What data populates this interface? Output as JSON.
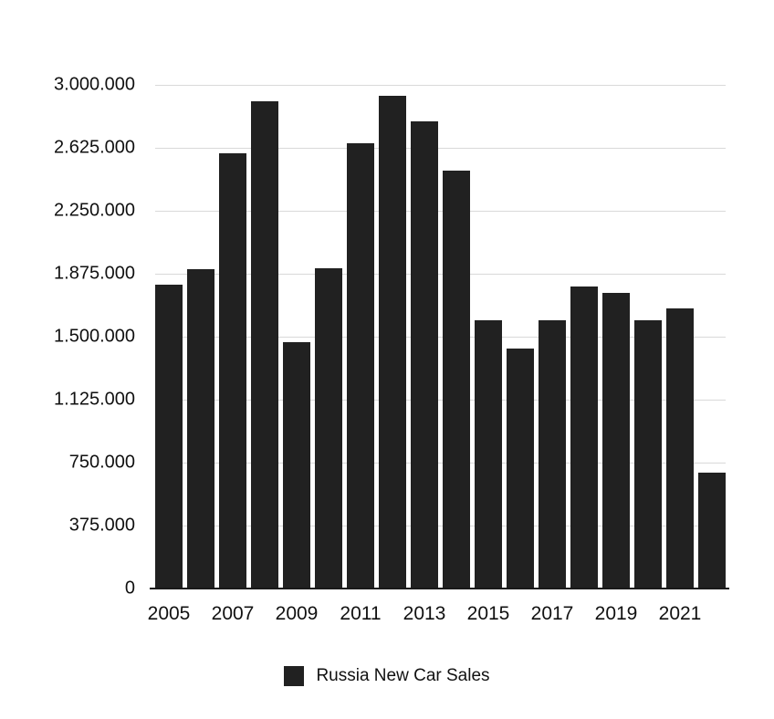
{
  "chart_data": {
    "type": "bar",
    "title": "",
    "legend": "Russia New Car Sales",
    "bar_color": "#212121",
    "gridline_color": "#d9d9d9",
    "axis_color": "#1a1a1a",
    "ylim": [
      0,
      3000000
    ],
    "grid": true,
    "legend_position": "bottom",
    "y_ticks": [
      {
        "value": 3000000,
        "label": "3.000.000"
      },
      {
        "value": 2625000,
        "label": "2.625.000"
      },
      {
        "value": 2250000,
        "label": "2.250.000"
      },
      {
        "value": 1875000,
        "label": "1.875.000"
      },
      {
        "value": 1500000,
        "label": "1.500.000"
      },
      {
        "value": 1125000,
        "label": "1.125.000"
      },
      {
        "value": 750000,
        "label": "750.000"
      },
      {
        "value": 375000,
        "label": "375.000"
      },
      {
        "value": 0,
        "label": "0"
      }
    ],
    "categories": [
      "2005",
      "2006",
      "2007",
      "2008",
      "2009",
      "2010",
      "2011",
      "2012",
      "2013",
      "2014",
      "2015",
      "2016",
      "2017",
      "2018",
      "2019",
      "2020",
      "2021",
      "2022"
    ],
    "values": [
      1810000,
      1900000,
      2590000,
      2900000,
      1470000,
      1910000,
      2650000,
      2935000,
      2780000,
      2490000,
      1600000,
      1430000,
      1600000,
      1800000,
      1760000,
      1600000,
      1670000,
      690000
    ],
    "x_tick_labels": [
      "2005",
      "2007",
      "2009",
      "2011",
      "2013",
      "2015",
      "2017",
      "2019",
      "2021"
    ]
  }
}
